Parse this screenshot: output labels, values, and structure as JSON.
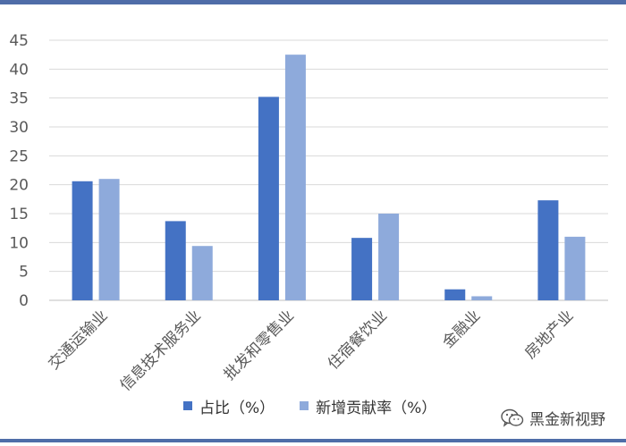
{
  "chart_data": {
    "type": "bar",
    "categories": [
      "交通运输业",
      "信息技术服务业",
      "批发和零售业",
      "住宿餐饮业",
      "金融业",
      "房地产业"
    ],
    "series": [
      {
        "name": "占比（%）",
        "color": "#4472c4",
        "values": [
          20.6,
          13.7,
          35.2,
          10.8,
          1.9,
          17.3
        ]
      },
      {
        "name": "新增贡献率（%）",
        "color": "#8eaadb",
        "values": [
          21.0,
          9.4,
          42.5,
          15.0,
          0.7,
          11.0
        ]
      }
    ],
    "yticks": [
      0,
      5,
      10,
      15,
      20,
      25,
      30,
      35,
      40,
      45
    ],
    "ylim": [
      0,
      45
    ],
    "grid": true,
    "legend_position": "bottom"
  },
  "watermark": {
    "text": "黑金新视野",
    "icon": "wechat-icon"
  }
}
